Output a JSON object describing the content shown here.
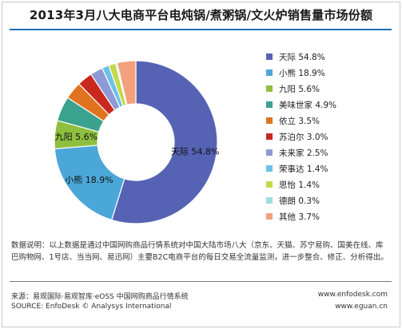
{
  "title": "2013年3月八大电商平台电炖锅/煮粥锅/文火炉销售量市场份额",
  "description": {
    "label": "数据说明：",
    "text": "以上数据是通过中国网购商品行情系统对中国大陆市场八大（京东、天猫、苏宁易购、国美在线、库巴购物网、1号店、当当网、易迅网）主要B2C电商平台的每日交易全流量监测，进一步整合、修正、分析得出。"
  },
  "source": {
    "line1": "来源：易观国际·易观智库·eOSS 中国网购商品行情系统",
    "line2": "SOURCE: EnfoDesk © Analysys International"
  },
  "urls": {
    "line1": "www.enfodesk.com",
    "line2": "www.eguan.cn"
  },
  "chart_data": {
    "type": "pie",
    "donut": true,
    "title": "2013年3月八大电商平台电炖锅/煮粥锅/文火炉销售量市场份额",
    "unit": "%",
    "legend_position": "right",
    "series": [
      {
        "name": "天际",
        "value": 54.8,
        "color": "#5663b5"
      },
      {
        "name": "小熊",
        "value": 18.9,
        "color": "#4ba7d8"
      },
      {
        "name": "九阳",
        "value": 5.6,
        "color": "#8fbf3f"
      },
      {
        "name": "美味世家",
        "value": 4.9,
        "color": "#3aa28d"
      },
      {
        "name": "依立",
        "value": 3.5,
        "color": "#e0731e"
      },
      {
        "name": "苏泊尔",
        "value": 3.0,
        "color": "#c8281e"
      },
      {
        "name": "未来家",
        "value": 2.5,
        "color": "#8e9ad5"
      },
      {
        "name": "荣事达",
        "value": 1.4,
        "color": "#6cc2ea"
      },
      {
        "name": "思怡",
        "value": 1.4,
        "color": "#c6d84a"
      },
      {
        "name": "德朗",
        "value": 0.3,
        "color": "#9ee0d8"
      },
      {
        "name": "其他",
        "value": 3.7,
        "color": "#f2a07e"
      }
    ],
    "data_labels": [
      "天际",
      "小熊",
      "九阳"
    ]
  }
}
